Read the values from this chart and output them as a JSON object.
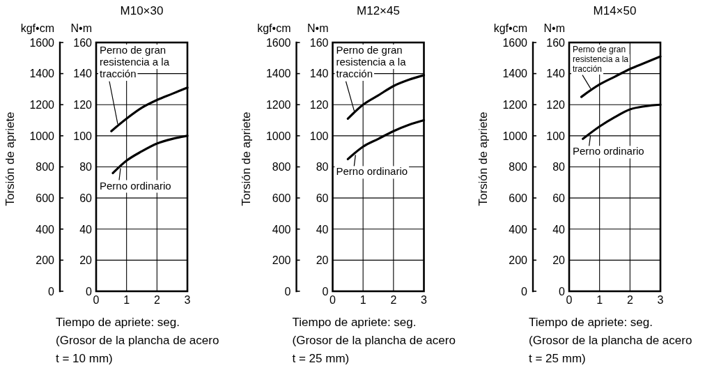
{
  "chart_data": [
    {
      "type": "line",
      "title": "M10×30",
      "xlabel": "Tiempo de apriete: seg.\n(Grosor de la plancha de acero\nt = 10 mm)",
      "ylabel": "Torsión de apriete",
      "annotations": [
        "kgf•cm",
        "N•m"
      ],
      "xlim": [
        0,
        3
      ],
      "xticks": [
        0,
        1,
        2,
        3
      ],
      "ylim": [
        0,
        1600
      ],
      "yticks": [
        0,
        200,
        400,
        600,
        800,
        1000,
        1200,
        1400,
        1600
      ],
      "y2lim": [
        0,
        160
      ],
      "y2ticks": [
        0,
        20,
        40,
        60,
        80,
        100,
        120,
        140,
        160
      ],
      "grid": true,
      "series": [
        {
          "name": "Perno de gran resistencia a la tracción",
          "color": "#000000",
          "axis": "y2",
          "x": [
            0.5,
            1,
            1.5,
            2,
            2.5,
            3
          ],
          "values": [
            103,
            111,
            118,
            123,
            127,
            131
          ]
        },
        {
          "name": "Perno ordinario",
          "color": "#000000",
          "axis": "y2",
          "x": [
            0.55,
            1,
            1.5,
            2,
            2.5,
            3
          ],
          "values": [
            76,
            84,
            90,
            95,
            98,
            100
          ]
        }
      ]
    },
    {
      "type": "line",
      "title": "M12×45",
      "xlabel": "Tiempo de apriete: seg.\n(Grosor de la plancha de acero\nt = 25 mm)",
      "ylabel": "Torsión de apriete",
      "annotations": [
        "kgf•cm",
        "N•m"
      ],
      "xlim": [
        0,
        3
      ],
      "xticks": [
        0,
        1,
        2,
        3
      ],
      "ylim": [
        0,
        1600
      ],
      "yticks": [
        0,
        200,
        400,
        600,
        800,
        1000,
        1200,
        1400,
        1600
      ],
      "y2lim": [
        0,
        160
      ],
      "y2ticks": [
        0,
        20,
        40,
        60,
        80,
        100,
        120,
        140,
        160
      ],
      "grid": true,
      "series": [
        {
          "name": "Perno de gran resistencia a la tracción",
          "color": "#000000",
          "axis": "y2",
          "x": [
            0.5,
            1,
            1.5,
            2,
            2.5,
            3
          ],
          "values": [
            111,
            120,
            126,
            132,
            136,
            139
          ]
        },
        {
          "name": "Perno ordinario",
          "color": "#000000",
          "axis": "y2",
          "x": [
            0.5,
            1,
            1.5,
            2,
            2.5,
            3
          ],
          "values": [
            85,
            93,
            98,
            103,
            107,
            110
          ]
        }
      ]
    },
    {
      "type": "line",
      "title": "M14×50",
      "xlabel": "Tiempo de apriete: seg.\n(Grosor de la plancha de acero\nt = 25 mm)",
      "ylabel": "Torsión de apriete",
      "annotations": [
        "kgf•cm",
        "N•m"
      ],
      "xlim": [
        0,
        3
      ],
      "xticks": [
        0,
        1,
        2,
        3
      ],
      "ylim": [
        0,
        1600
      ],
      "yticks": [
        0,
        200,
        400,
        600,
        800,
        1000,
        1200,
        1400,
        1600
      ],
      "y2lim": [
        0,
        160
      ],
      "y2ticks": [
        0,
        20,
        40,
        60,
        80,
        100,
        120,
        140,
        160
      ],
      "grid": true,
      "series": [
        {
          "name": "Perno de gran resistencia a la tracción",
          "color": "#000000",
          "axis": "y2",
          "x": [
            0.4,
            1,
            1.5,
            2,
            2.5,
            3
          ],
          "values": [
            125,
            133,
            138,
            143,
            147,
            151
          ]
        },
        {
          "name": "Perno ordinario",
          "color": "#000000",
          "axis": "y2",
          "x": [
            0.45,
            1,
            1.5,
            2,
            2.5,
            3
          ],
          "values": [
            98,
            106,
            112,
            117,
            119,
            120
          ]
        }
      ]
    }
  ]
}
